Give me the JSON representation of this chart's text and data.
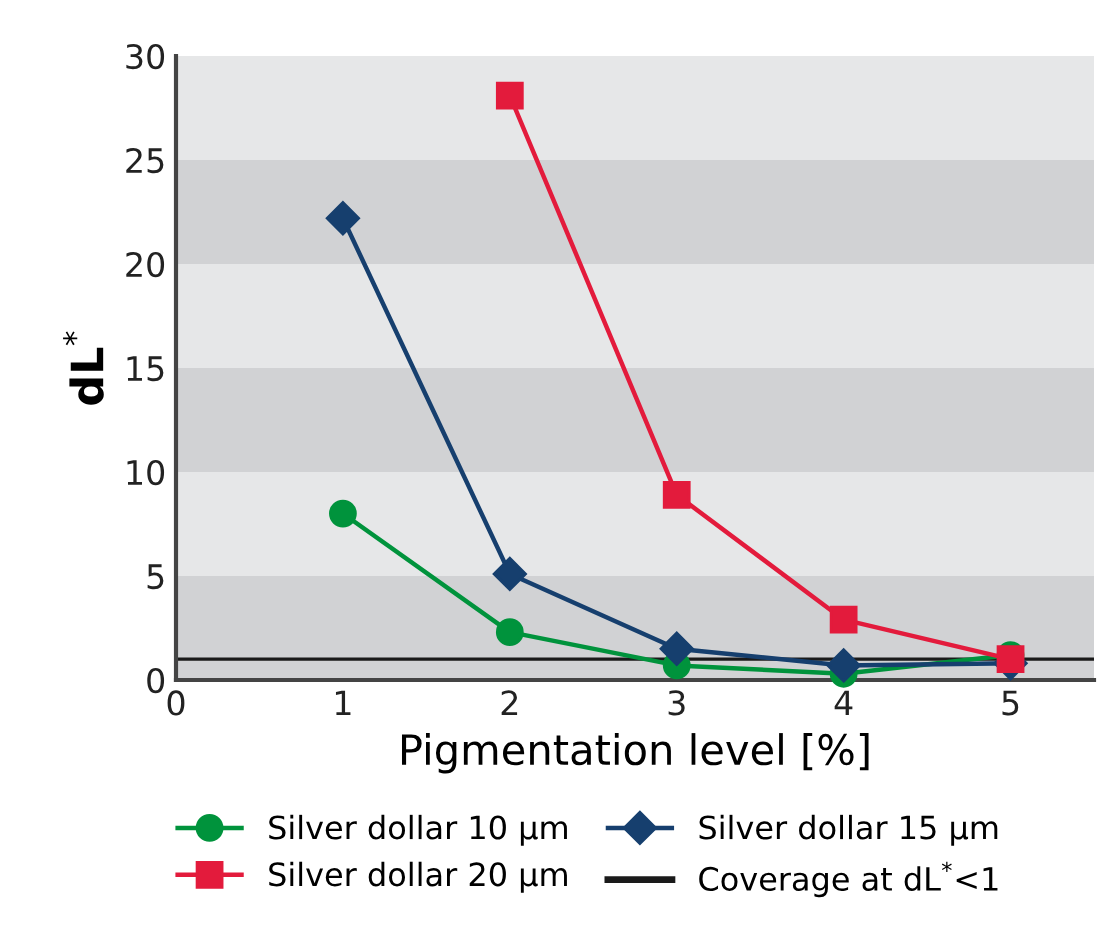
{
  "chart_data": {
    "type": "line",
    "xlabel": "Pigmentation level [%]",
    "ylabel": "dL$^{*}$",
    "x": [
      1,
      2,
      3,
      4,
      5
    ],
    "series": [
      {
        "name": "Silver dollar 10 µm",
        "color": "#00933c",
        "marker": "circle",
        "values": [
          8.0,
          2.3,
          0.7,
          0.3,
          1.2
        ]
      },
      {
        "name": "Silver dollar 15 µm",
        "color": "#163f6e",
        "marker": "diamond",
        "values": [
          22.2,
          5.1,
          1.5,
          0.7,
          0.8
        ]
      },
      {
        "name": "Silver dollar 20 µm",
        "color": "#e31b3c",
        "marker": "square",
        "values": [
          null,
          28.1,
          8.9,
          2.9,
          1.0
        ]
      }
    ],
    "ref_lines": [
      {
        "axis": "y",
        "value": 1,
        "label": "Coverage at dL$^{*}$<1",
        "color": "#1a1a1a",
        "line_style": "solid"
      }
    ],
    "bands": [
      {
        "axis": "y",
        "from": 0,
        "to": 5,
        "color": "#d1d2d4"
      },
      {
        "axis": "y",
        "from": 5,
        "to": 10,
        "color": "#e6e7e8"
      },
      {
        "axis": "y",
        "from": 10,
        "to": 15,
        "color": "#d1d2d4"
      },
      {
        "axis": "y",
        "from": 15,
        "to": 20,
        "color": "#e6e7e8"
      },
      {
        "axis": "y",
        "from": 20,
        "to": 25,
        "color": "#d1d2d4"
      },
      {
        "axis": "y",
        "from": 25,
        "to": 30,
        "color": "#e6e7e8"
      }
    ],
    "xlim": [
      0,
      5.5
    ],
    "ylim": [
      0,
      30
    ],
    "xticks": [
      0,
      1,
      2,
      3,
      4,
      5
    ],
    "yticks": [
      0,
      5,
      10,
      15,
      20,
      25,
      30
    ],
    "grid": false,
    "legend": "bottom",
    "line_style": "solid"
  }
}
